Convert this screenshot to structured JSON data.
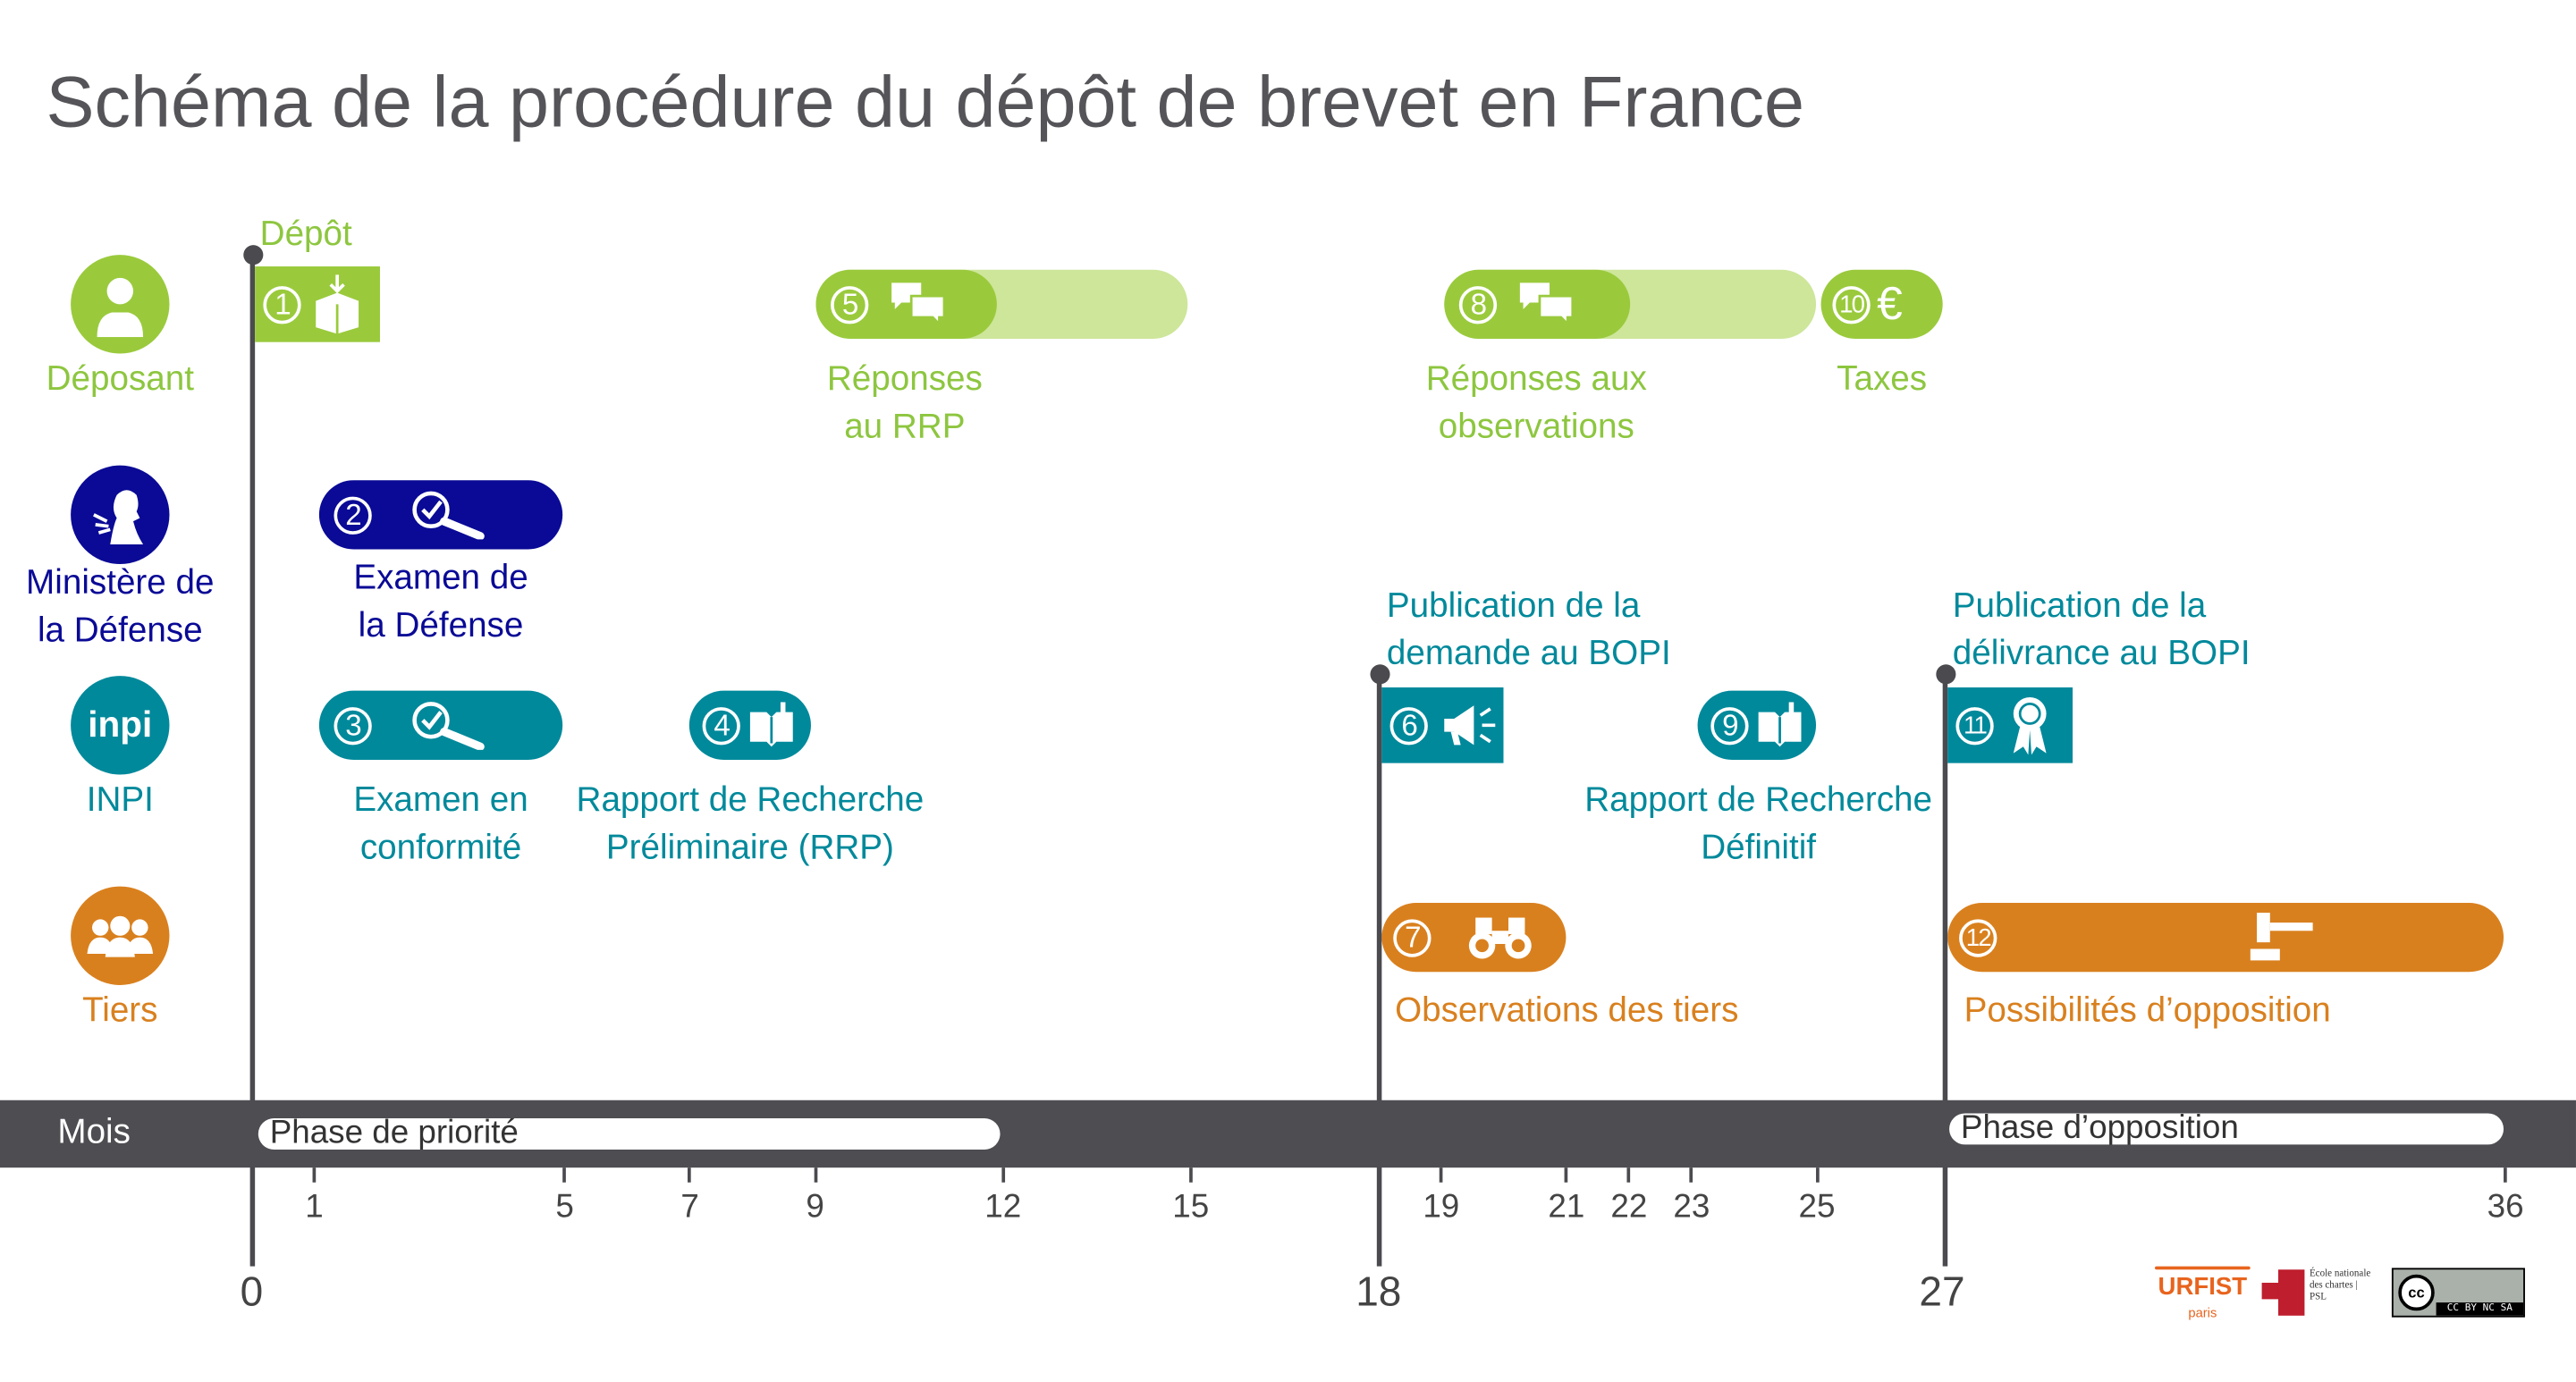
{
  "title": "Schéma de la procédure du dépôt de brevet en France",
  "colors": {
    "deposant": "#9ACA3C",
    "deposant_light": "#CDE69A",
    "defense": "#0A0A96",
    "inpi": "#00899B",
    "tiers": "#D9801E",
    "band": "#4d4d52",
    "axis": "#4a4a4f"
  },
  "actors": [
    {
      "label_1": "Déposant",
      "label_2": "",
      "icon": "person-lightbulb-icon"
    },
    {
      "label_1": "Ministère de",
      "label_2": "la Défense",
      "icon": "marianne-icon"
    },
    {
      "label_1": "INPI",
      "label_2": "",
      "icon": "inpi-logo-icon",
      "logo_text": "inpi"
    },
    {
      "label_1": "Tiers",
      "label_2": "",
      "icon": "group-icon"
    }
  ],
  "milestones": {
    "depot": "Dépôt"
  },
  "steps": [
    {
      "num": "1",
      "icon": "ballot-box-icon",
      "label_1": "",
      "label_2": ""
    },
    {
      "num": "2",
      "icon": "check-magnifier-icon",
      "label_1": "Examen de",
      "label_2": "la Défense"
    },
    {
      "num": "3",
      "icon": "check-magnifier-icon",
      "label_1": "Examen en",
      "label_2": "conformité"
    },
    {
      "num": "4",
      "icon": "book-icon",
      "label_1": "Rapport de Recherche",
      "label_2": "Préliminaire (RRP)"
    },
    {
      "num": "5",
      "icon": "chat-bubbles-icon",
      "label_1": "Réponses",
      "label_2": "au RRP"
    },
    {
      "num": "6",
      "icon": "megaphone-icon",
      "label_1": "Publication de la",
      "label_2": "demande au BOPI"
    },
    {
      "num": "7",
      "icon": "binoculars-icon",
      "label_1": "Observations des tiers",
      "label_2": ""
    },
    {
      "num": "8",
      "icon": "chat-bubbles-icon",
      "label_1": "Réponses aux",
      "label_2": "observations"
    },
    {
      "num": "9",
      "icon": "book-icon",
      "label_1": "Rapport de Recherche",
      "label_2": "Définitif"
    },
    {
      "num": "10",
      "icon": "euro-icon",
      "symbol": "€",
      "label_1": "Taxes",
      "label_2": ""
    },
    {
      "num": "11",
      "icon": "award-ribbon-icon",
      "label_1": "Publication de la",
      "label_2": "délivrance au BOPI"
    },
    {
      "num": "12",
      "icon": "gavel-icon",
      "label_1": "Possibilités d’opposition",
      "label_2": ""
    }
  ],
  "timeline": {
    "unit_label": "Mois",
    "phases": [
      {
        "label": "Phase de priorité",
        "from": 0,
        "to": 12
      },
      {
        "label": "Phase d’opposition",
        "from": 27,
        "to": 36
      }
    ],
    "minor_ticks": [
      "1",
      "5",
      "7",
      "9",
      "12",
      "15",
      "19",
      "21",
      "22",
      "23",
      "25",
      "36"
    ],
    "major_ticks": [
      "0",
      "18",
      "27"
    ]
  },
  "logos": {
    "urfist": "URFIST",
    "urfist_sub": "paris",
    "enc": "École nationale des chartes | PSL",
    "license": "CC BY NC SA"
  }
}
